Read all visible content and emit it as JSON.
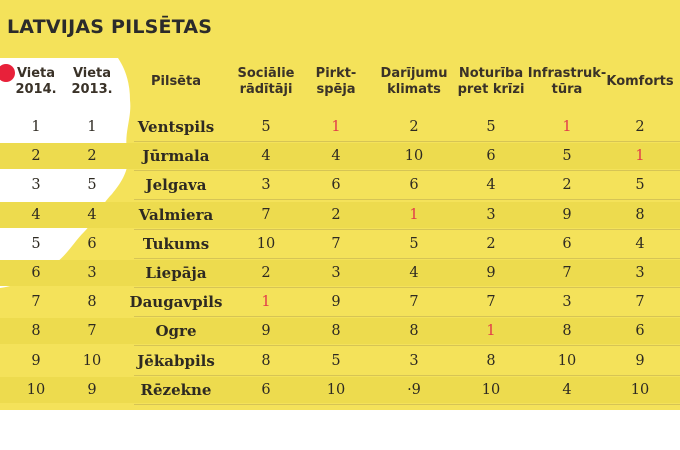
{
  "title": "LATVIJAS PILSĒTAS",
  "colors": {
    "panel": "#f4e25a",
    "highlight": "#e23a4a",
    "dot": "#e8213a"
  },
  "headers": [
    [
      "Vieta",
      "2014."
    ],
    [
      "Vieta",
      "2013."
    ],
    [
      "Pilsēta"
    ],
    [
      "Sociālie",
      "rādītāji"
    ],
    [
      "Pirkt-",
      "spēja"
    ],
    [
      "Darījumu",
      "klimats"
    ],
    [
      "Noturība",
      "pret krīzi"
    ],
    [
      "Infrastruk-",
      "tūra"
    ],
    [
      "Komforts"
    ]
  ],
  "rows": [
    [
      "1",
      "1",
      "Ventspils",
      "5",
      "1",
      "2",
      "5",
      "1",
      "2"
    ],
    [
      "2",
      "2",
      "Jūrmala",
      "4",
      "4",
      "10",
      "6",
      "5",
      "1"
    ],
    [
      "3",
      "5",
      "Jelgava",
      "3",
      "6",
      "6",
      "4",
      "2",
      "5"
    ],
    [
      "4",
      "4",
      "Valmiera",
      "7",
      "2",
      "1",
      "3",
      "9",
      "8"
    ],
    [
      "5",
      "6",
      "Tukums",
      "10",
      "7",
      "5",
      "2",
      "6",
      "4"
    ],
    [
      "6",
      "3",
      "Liepāja",
      "2",
      "3",
      "4",
      "9",
      "7",
      "3"
    ],
    [
      "7",
      "8",
      "Daugavpils",
      "1",
      "9",
      "7",
      "7",
      "3",
      "7"
    ],
    [
      "8",
      "7",
      "Ogre",
      "9",
      "8",
      "8",
      "1",
      "8",
      "6"
    ],
    [
      "9",
      "10",
      "Jēkabpils",
      "8",
      "5",
      "3",
      "8",
      "10",
      "9"
    ],
    [
      "10",
      "9",
      "Rēzekne",
      "6",
      "10",
      "·9",
      "10",
      "4",
      "10"
    ]
  ]
}
